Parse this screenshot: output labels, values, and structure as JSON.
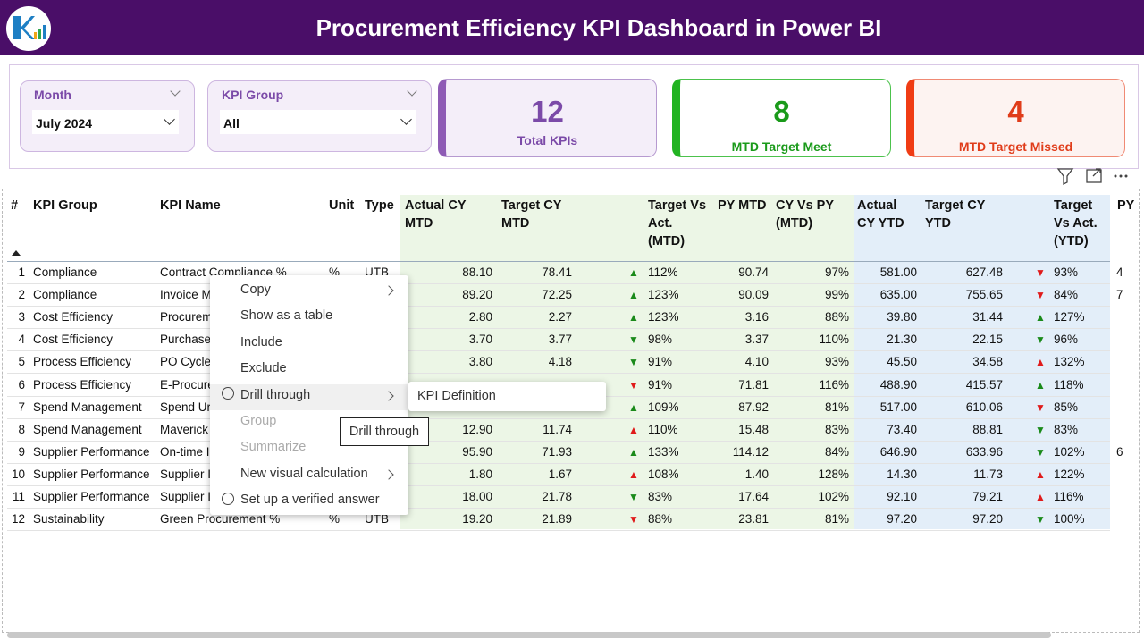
{
  "header": {
    "title": "Procurement Efficiency KPI Dashboard in Power BI"
  },
  "slicers": [
    {
      "label": "Month",
      "value": "July 2024"
    },
    {
      "label": "KPI Group",
      "value": "All"
    }
  ],
  "cards": [
    {
      "value": 12,
      "label": "Total KPIs",
      "color": "#7b4aa8",
      "accent": "#8e5bb5",
      "background": "#f4eef9",
      "border": "#b69ad0"
    },
    {
      "value": 8,
      "label": "MTD Target Meet",
      "color": "#1a9a1a",
      "accent": "#22b322",
      "background": "#ffffff",
      "border": "#4cc24c"
    },
    {
      "value": 4,
      "label": "MTD Target Missed",
      "color": "#e03c1a",
      "accent": "#f03c14",
      "background": "#fdf3f1",
      "border": "#f08a74"
    }
  ],
  "table": {
    "columns": [
      "#",
      "KPI Group",
      "KPI Name",
      "Unit",
      "Type",
      "Actual CY MTD",
      "Target CY MTD",
      "Target Vs Act. (MTD)",
      "PY MTD",
      "CY Vs PY (MTD)",
      "Actual CY YTD",
      "Target CY YTD",
      "Target Vs Act. (YTD)",
      "PY"
    ],
    "rows": [
      [
        "1",
        "Compliance",
        "Contract Compliance %",
        "%",
        "UTB",
        "88.10",
        "78.41",
        {
          "symbol": "▲",
          "color": "#1a8a1a"
        },
        "112%",
        "90.74",
        "97%",
        "581.00",
        "627.48",
        {
          "symbol": "▼",
          "color": "#e01b1b"
        },
        "93%",
        "4"
      ],
      [
        "2",
        "Compliance",
        "Invoice M",
        null,
        null,
        "89.20",
        "72.25",
        {
          "symbol": "▲",
          "color": "#1a8a1a"
        },
        "123%",
        "90.09",
        "99%",
        "635.00",
        "755.65",
        {
          "symbol": "▼",
          "color": "#e01b1b"
        },
        "84%",
        "7"
      ],
      [
        "3",
        "Cost Efficiency",
        "Procurem",
        null,
        null,
        "2.80",
        "2.27",
        {
          "symbol": "▲",
          "color": "#1a8a1a"
        },
        "123%",
        "3.16",
        "88%",
        "39.80",
        "31.44",
        {
          "symbol": "▲",
          "color": "#1a8a1a"
        },
        "127%",
        null
      ],
      [
        "4",
        "Cost Efficiency",
        "Purchase",
        null,
        null,
        "3.70",
        "3.77",
        {
          "symbol": "▼",
          "color": "#1a8a1a"
        },
        "98%",
        "3.37",
        "110%",
        "21.30",
        "22.15",
        {
          "symbol": "▼",
          "color": "#1a8a1a"
        },
        "96%",
        null
      ],
      [
        "5",
        "Process Efficiency",
        "PO Cycle",
        null,
        null,
        "3.80",
        "4.18",
        {
          "symbol": "▼",
          "color": "#1a8a1a"
        },
        "91%",
        "4.10",
        "93%",
        "45.50",
        "34.58",
        {
          "symbol": "▲",
          "color": "#e01b1b"
        },
        "132%",
        null
      ],
      [
        "6",
        "Process Efficiency",
        "E-Procure",
        null,
        null,
        null,
        null,
        {
          "symbol": "▼",
          "color": "#e01b1b"
        },
        "91%",
        "71.81",
        "116%",
        "488.90",
        "415.57",
        {
          "symbol": "▲",
          "color": "#1a8a1a"
        },
        "118%",
        null
      ],
      [
        "7",
        "Spend Management",
        "Spend Ur",
        null,
        null,
        null,
        null,
        {
          "symbol": "▲",
          "color": "#1a8a1a"
        },
        "109%",
        "87.92",
        "81%",
        "517.00",
        "610.06",
        {
          "symbol": "▼",
          "color": "#e01b1b"
        },
        "85%",
        null
      ],
      [
        "8",
        "Spend Management",
        "Maverick",
        null,
        null,
        "12.90",
        "11.74",
        {
          "symbol": "▲",
          "color": "#e01b1b"
        },
        "110%",
        "15.48",
        "83%",
        "73.40",
        "88.81",
        {
          "symbol": "▼",
          "color": "#1a8a1a"
        },
        "83%",
        null
      ],
      [
        "9",
        "Supplier Performance",
        "On-time I",
        null,
        null,
        "95.90",
        "71.93",
        {
          "symbol": "▲",
          "color": "#1a8a1a"
        },
        "133%",
        "114.12",
        "84%",
        "646.90",
        "633.96",
        {
          "symbol": "▼",
          "color": "#1a8a1a"
        },
        "102%",
        "6"
      ],
      [
        "10",
        "Supplier Performance",
        "Supplier I",
        null,
        null,
        "1.80",
        "1.67",
        {
          "symbol": "▲",
          "color": "#e01b1b"
        },
        "108%",
        "1.40",
        "128%",
        "14.30",
        "11.73",
        {
          "symbol": "▲",
          "color": "#e01b1b"
        },
        "122%",
        null
      ],
      [
        "11",
        "Supplier Performance",
        "Supplier I",
        null,
        null,
        "18.00",
        "21.78",
        {
          "symbol": "▼",
          "color": "#1a8a1a"
        },
        "83%",
        "17.64",
        "102%",
        "92.10",
        "79.21",
        {
          "symbol": "▲",
          "color": "#e01b1b"
        },
        "116%",
        null
      ],
      [
        "12",
        "Sustainability",
        "Green Procurement %",
        "%",
        "UTB",
        "19.20",
        "21.89",
        {
          "symbol": "▼",
          "color": "#e01b1b"
        },
        "88%",
        "23.81",
        "81%",
        "97.20",
        "97.20",
        {
          "symbol": "▼",
          "color": "#1a8a1a"
        },
        "100%",
        null
      ]
    ]
  },
  "context_menu": {
    "items": [
      {
        "label": "Copy",
        "has_submenu": true
      },
      {
        "label": "Show as a table"
      },
      {
        "label": "Include"
      },
      {
        "label": "Exclude"
      },
      {
        "label": "Drill through",
        "has_submenu": true,
        "highlighted": true
      },
      {
        "label": "Group",
        "disabled": true
      },
      {
        "label": "Summarize",
        "disabled": true
      },
      {
        "label": "New visual calculation",
        "has_submenu": true
      },
      {
        "label": "Set up a verified answer"
      }
    ],
    "submenu": [
      "KPI Definition"
    ],
    "tooltip": "Drill through"
  }
}
